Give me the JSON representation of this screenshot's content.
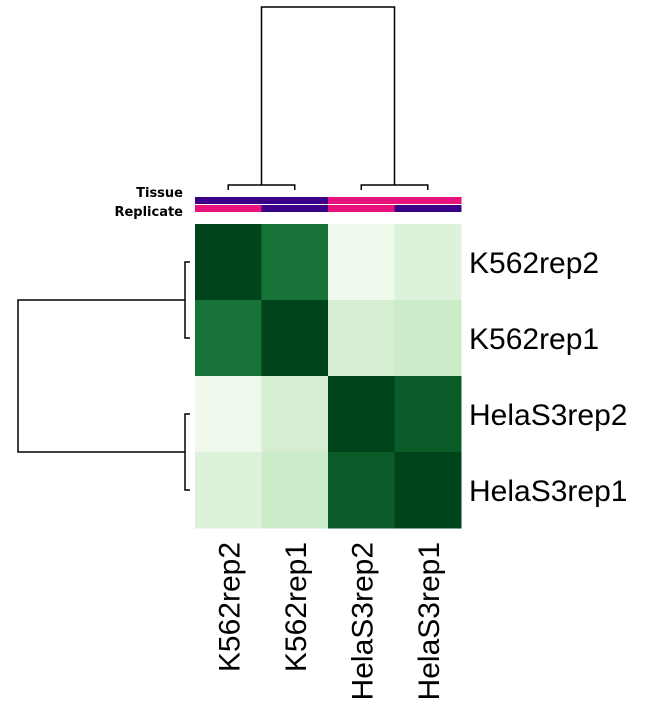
{
  "chart_data": {
    "type": "heatmap",
    "title": "",
    "rows": [
      "K562rep2",
      "K562rep1",
      "HelaS3rep2",
      "HelaS3rep1"
    ],
    "columns": [
      "K562rep2",
      "K562rep1",
      "HelaS3rep2",
      "HelaS3rep1"
    ],
    "values": [
      [
        1.0,
        0.9,
        0.05,
        0.15
      ],
      [
        0.9,
        1.0,
        0.2,
        0.25
      ],
      [
        0.05,
        0.2,
        1.0,
        0.95
      ],
      [
        0.15,
        0.25,
        0.95,
        1.0
      ]
    ],
    "color_scale": {
      "low": "#f7fcf5",
      "high": "#00441b"
    },
    "annotations": [
      {
        "name": "Tissue",
        "values": [
          "K562",
          "K562",
          "HelaS3",
          "HelaS3"
        ],
        "colors": [
          "#3a0088",
          "#3a0088",
          "#e8127c",
          "#e8127c"
        ]
      },
      {
        "name": "Replicate",
        "values": [
          "rep2",
          "rep1",
          "rep2",
          "rep1"
        ],
        "colors": [
          "#e8127c",
          "#3a0088",
          "#e8127c",
          "#3a0088"
        ]
      }
    ],
    "row_dendrogram": true,
    "column_dendrogram": true,
    "legend": "none"
  }
}
